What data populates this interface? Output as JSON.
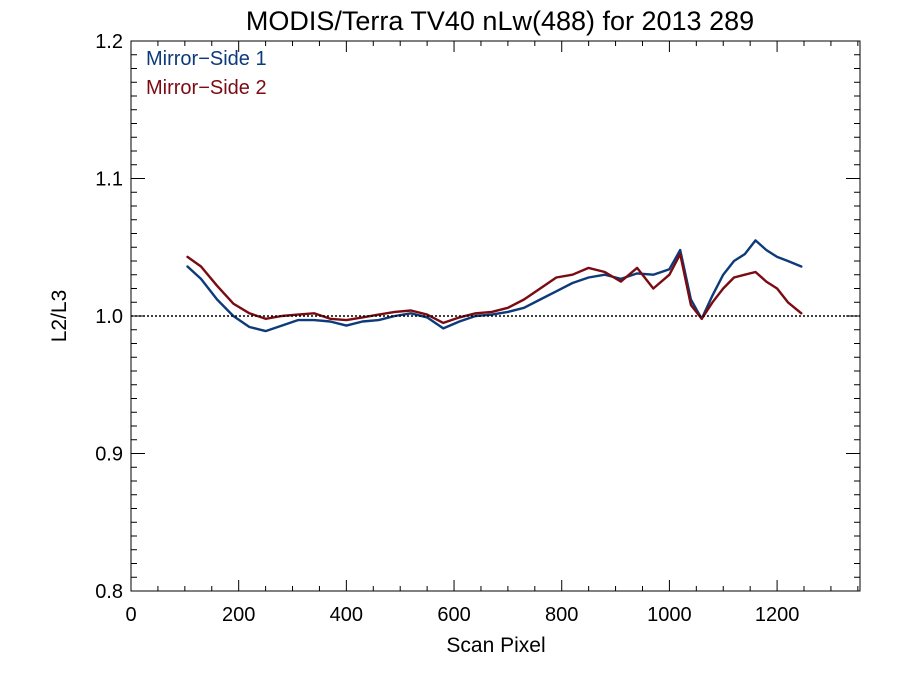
{
  "chart_data": {
    "type": "line",
    "title": "MODIS/Terra TV40 nLw(488) for 2013 289",
    "xlabel": "Scan Pixel",
    "ylabel": "L2/L3",
    "xlim": [
      0,
      1354
    ],
    "ylim": [
      0.8,
      1.2
    ],
    "x_ticks": [
      "0",
      "200",
      "400",
      "600",
      "800",
      "1000",
      "1200"
    ],
    "y_ticks": [
      "0.8",
      "0.9",
      "1.0",
      "1.1",
      "1.2"
    ],
    "reference_line": 1.0,
    "grid": false,
    "legend_position": "top-left",
    "colors": {
      "mirror_side_1": "#0d3a7a",
      "mirror_side_2": "#7a0b12",
      "axis": "#000000"
    },
    "x": [
      105,
      130,
      160,
      190,
      220,
      250,
      280,
      310,
      340,
      370,
      400,
      430,
      460,
      490,
      520,
      550,
      580,
      610,
      640,
      670,
      700,
      730,
      760,
      790,
      820,
      850,
      880,
      910,
      940,
      970,
      1000,
      1020,
      1040,
      1060,
      1080,
      1100,
      1120,
      1140,
      1160,
      1180,
      1200,
      1220,
      1245
    ],
    "series": [
      {
        "name": "Mirror−Side 1",
        "values": [
          1.036,
          1.027,
          1.012,
          1.0,
          0.992,
          0.989,
          0.993,
          0.997,
          0.997,
          0.996,
          0.993,
          0.996,
          0.997,
          1.0,
          1.002,
          0.999,
          0.991,
          0.996,
          1.0,
          1.001,
          1.003,
          1.006,
          1.012,
          1.018,
          1.024,
          1.028,
          1.03,
          1.027,
          1.031,
          1.03,
          1.034,
          1.048,
          1.012,
          0.998,
          1.015,
          1.03,
          1.04,
          1.045,
          1.055,
          1.048,
          1.043,
          1.04,
          1.036
        ]
      },
      {
        "name": "Mirror−Side 2",
        "values": [
          1.043,
          1.036,
          1.022,
          1.009,
          1.002,
          0.998,
          1.0,
          1.001,
          1.002,
          0.998,
          0.997,
          0.999,
          1.001,
          1.003,
          1.004,
          1.001,
          0.995,
          0.999,
          1.002,
          1.003,
          1.006,
          1.012,
          1.02,
          1.028,
          1.03,
          1.035,
          1.032,
          1.025,
          1.035,
          1.02,
          1.03,
          1.045,
          1.008,
          0.998,
          1.01,
          1.02,
          1.028,
          1.03,
          1.032,
          1.025,
          1.02,
          1.01,
          1.002
        ]
      }
    ]
  }
}
